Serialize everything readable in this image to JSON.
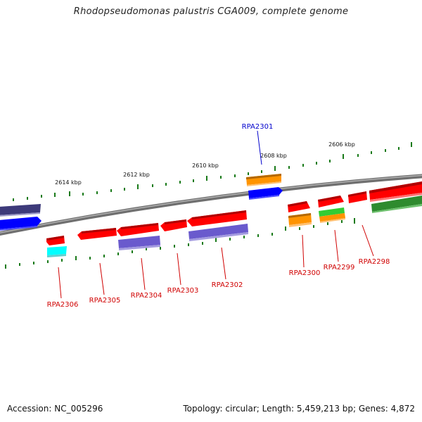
{
  "title": "Rhodopseudomonas palustris CGA009, complete genome",
  "footer": {
    "accession": "Accession: NC_005296",
    "topology": "Topology: circular; Length: 5,459,213 bp; Genes: 4,872"
  },
  "scale_marks": [
    {
      "label": "2614 kbp",
      "pos_kbp": 2614
    },
    {
      "label": "2612 kbp",
      "pos_kbp": 2612
    },
    {
      "label": "2610 kbp",
      "pos_kbp": 2610
    },
    {
      "label": "2608 kbp",
      "pos_kbp": 2608
    },
    {
      "label": "2606 kbp",
      "pos_kbp": 2606
    }
  ],
  "genes": [
    {
      "name": "RPA2306",
      "highlighted": false
    },
    {
      "name": "RPA2305",
      "highlighted": false
    },
    {
      "name": "RPA2304",
      "highlighted": false
    },
    {
      "name": "RPA2303",
      "highlighted": false
    },
    {
      "name": "RPA2302",
      "highlighted": false
    },
    {
      "name": "RPA2301",
      "highlighted": true
    },
    {
      "name": "RPA2300",
      "highlighted": false
    },
    {
      "name": "RPA2299",
      "highlighted": false
    },
    {
      "name": "RPA2298",
      "highlighted": false
    }
  ],
  "colors": {
    "gene_red": "#ff0000",
    "orange": "#ff9400",
    "blue": "#0000ff",
    "slate": "#6a5acd",
    "navy": "#3d3a7a",
    "cyan": "#00ffff",
    "green": "#2e8b2e",
    "lime": "#33cc33",
    "backbone": "#777777",
    "tick": "#1a7a1a",
    "label_red": "#d00000",
    "label_blue": "#0000cc"
  }
}
